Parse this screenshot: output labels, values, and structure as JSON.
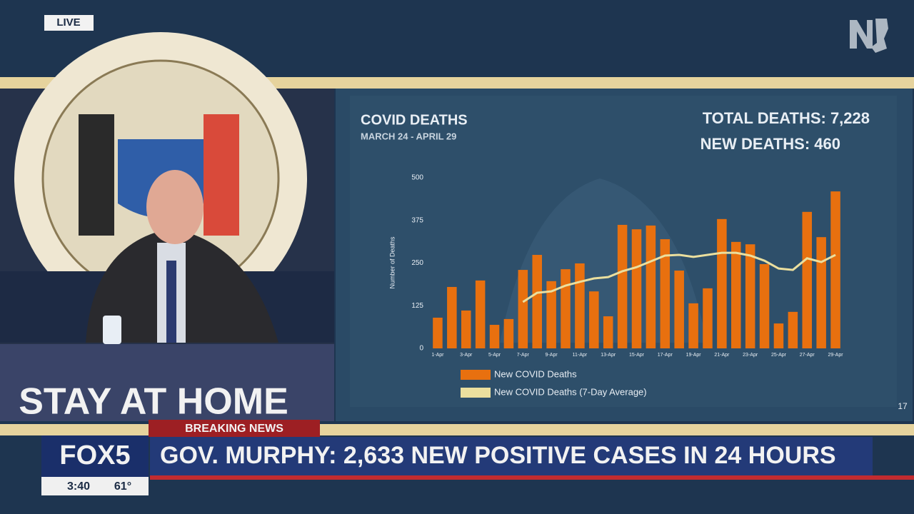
{
  "broadcast": {
    "live": "LIVE",
    "podium": "STAY AT HOME",
    "breaking": "BREAKING NEWS",
    "headline": "GOV. MURPHY: 2,633 NEW POSITIVE CASES IN 24 HOURS",
    "channel": "FOX5",
    "time": "3:40",
    "temperature": "61°",
    "slide_number": "17"
  },
  "chart_data": {
    "type": "bar",
    "title": "COVID DEATHS",
    "subtitle": "MARCH 24 - APRIL 29",
    "annotations": [
      "TOTAL DEATHS: 7,228",
      "NEW DEATHS: 460"
    ],
    "y_label": "Number of Deaths",
    "categories": [
      "1-Apr",
      null,
      "3-Apr",
      null,
      "5-Apr",
      null,
      "7-Apr",
      null,
      "9-Apr",
      null,
      "11-Apr",
      null,
      "13-Apr",
      null,
      "15-Apr",
      null,
      "17-Apr",
      null,
      "19-Apr",
      null,
      "21-Apr",
      null,
      "23-Apr",
      null,
      "25-Apr",
      null,
      "27-Apr",
      null,
      "29-Apr"
    ],
    "series": [
      {
        "name": "New COVID Deaths",
        "type": "bar",
        "color": "#e8700f",
        "values": [
          90,
          180,
          111,
          199,
          69,
          86,
          230,
          274,
          197,
          232,
          249,
          167,
          94,
          362,
          349,
          360,
          320,
          228,
          132,
          176,
          379,
          312,
          305,
          247,
          73,
          107,
          400,
          326,
          460
        ]
      },
      {
        "name": "New COVID Deaths (7-Day Average)",
        "type": "line",
        "color": "#ebdf9e",
        "values": [
          null,
          null,
          null,
          null,
          null,
          null,
          136,
          163,
          167,
          184,
          195,
          205,
          209,
          226,
          238,
          255,
          272,
          274,
          268,
          274,
          280,
          280,
          272,
          257,
          234,
          230,
          264,
          253,
          274
        ]
      }
    ],
    "ylim": [
      0,
      500
    ],
    "yticks": [
      0,
      125,
      250,
      375,
      500
    ],
    "grid": false
  }
}
